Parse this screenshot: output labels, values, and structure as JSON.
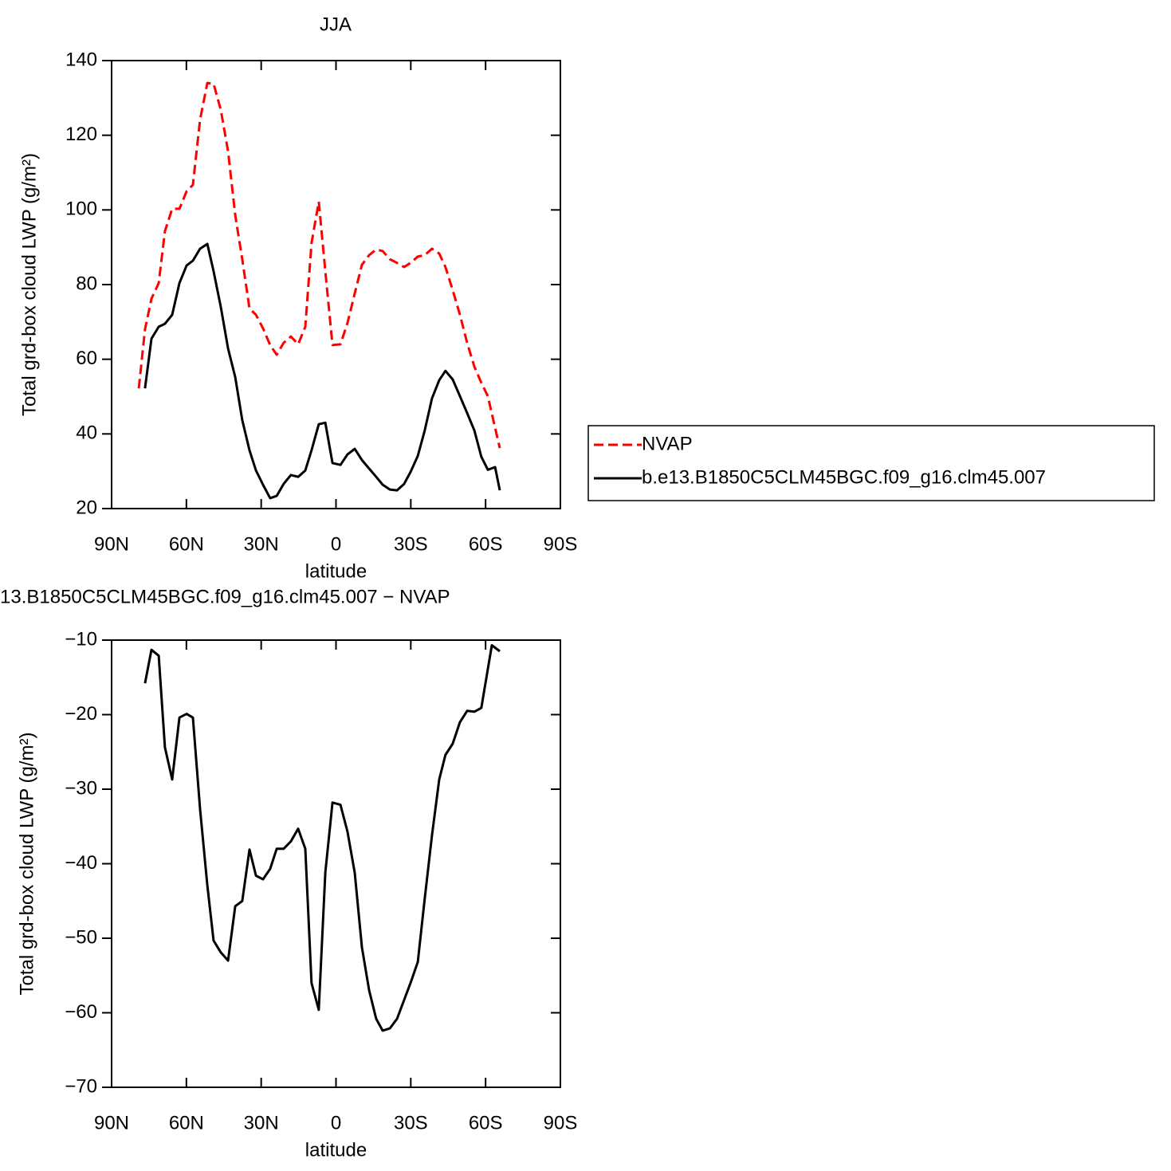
{
  "chart_data": [
    {
      "type": "line",
      "title": "JJA",
      "ylabel": "Total grd-box cloud LWP (g/m²)",
      "xlabel": "latitude",
      "x": [
        79.1,
        76.6,
        74,
        71.1,
        68.6,
        65.7,
        62.8,
        59.9,
        57.4,
        54.5,
        51.6,
        49.1,
        46.2,
        43.3,
        40.4,
        37.6,
        34.7,
        32.1,
        29.3,
        26.4,
        23.8,
        21,
        18.1,
        15.2,
        12.3,
        9.8,
        6.9,
        4.3,
        1.4,
        -1.8,
        -4.6,
        -7.5,
        -10.4,
        -13.3,
        -16.1,
        -18.7,
        -21.6,
        -24.5,
        -27.3,
        -29.9,
        -32.8,
        -35.6,
        -38.5,
        -41.4,
        -43.9,
        -46.8,
        -49.7,
        -52.6,
        -55.5,
        -58.3,
        -60.9,
        -63.8,
        -65.7
      ],
      "xlim": [
        90,
        -90
      ],
      "xticks": [
        {
          "value": 90,
          "label": "90N"
        },
        {
          "value": 60,
          "label": "60N"
        },
        {
          "value": 30,
          "label": "30N"
        },
        0,
        {
          "value": -30,
          "label": "30S"
        },
        {
          "value": -60,
          "label": "60S"
        },
        {
          "value": -90,
          "label": "90S"
        }
      ],
      "ylim": [
        20,
        140
      ],
      "yticks": [
        20,
        40,
        60,
        80,
        100,
        120,
        140
      ],
      "legend": "right",
      "series": [
        {
          "name": "NVAP",
          "color": "#ff0000",
          "dash": true,
          "values": [
            52.2,
            68,
            76.2,
            80.4,
            94.3,
            100.3,
            100.3,
            105,
            106.7,
            124.2,
            134,
            133.8,
            126.8,
            115.7,
            98.6,
            86.8,
            73.6,
            71.9,
            68.3,
            63.8,
            61.2,
            64.4,
            66.1,
            64,
            68.7,
            91.1,
            102.2,
            83.6,
            63.8,
            64,
            69.7,
            77.6,
            85.3,
            87.9,
            89.4,
            89,
            86.8,
            85.8,
            84.7,
            85.8,
            87.5,
            87.9,
            89.6,
            88.3,
            84.7,
            78.5,
            71.9,
            64.4,
            58,
            53.7,
            50.1,
            41.6,
            36.2
          ]
        },
        {
          "name": "b.e13.B1850C5CLM45BGC.f09_g16.clm45.007",
          "color": "#000000",
          "dash": false,
          "values": [
            null,
            52.2,
            65.5,
            68.7,
            69.5,
            71.9,
            80.4,
            85.1,
            86.4,
            89.6,
            90.9,
            83.6,
            74,
            62.9,
            55.2,
            43.7,
            35.6,
            30.2,
            26.4,
            22.8,
            23.4,
            26.6,
            29,
            28.5,
            30.2,
            35.6,
            42.6,
            43,
            32.2,
            31.7,
            34.5,
            36,
            33,
            30.7,
            28.5,
            26.4,
            25.1,
            24.9,
            26.6,
            29.8,
            34.1,
            40.9,
            49.5,
            54.4,
            56.9,
            54.6,
            50.1,
            45.6,
            40.9,
            33.9,
            30.4,
            31.1,
            24.9
          ]
        }
      ]
    },
    {
      "type": "line",
      "title": "13.B1850C5CLM45BGC.f09_g16.clm45.007 − NVAP",
      "ylabel": "Total grd-box cloud LWP (g/m²)",
      "xlabel": "latitude",
      "x": [
        76.6,
        74,
        71.1,
        68.6,
        65.7,
        62.8,
        59.9,
        57.4,
        54.5,
        51.6,
        49.1,
        46.2,
        43.3,
        40.4,
        37.6,
        34.7,
        32.1,
        29.3,
        26.4,
        23.8,
        21,
        18.1,
        15.2,
        12.3,
        9.8,
        6.9,
        4.3,
        1.4,
        -1.8,
        -4.6,
        -7.5,
        -10.4,
        -13.3,
        -16.1,
        -18.7,
        -21.6,
        -24.5,
        -27.3,
        -29.9,
        -32.8,
        -35.6,
        -38.5,
        -41.4,
        -43.9,
        -46.8,
        -49.7,
        -52.6,
        -55.5,
        -58.3,
        -62.5,
        -65.7
      ],
      "xlim": [
        90,
        -90
      ],
      "xticks": [
        {
          "value": 90,
          "label": "90N"
        },
        {
          "value": 60,
          "label": "60N"
        },
        {
          "value": 30,
          "label": "30N"
        },
        0,
        {
          "value": -30,
          "label": "30S"
        },
        {
          "value": -60,
          "label": "60S"
        },
        {
          "value": -90,
          "label": "90S"
        }
      ],
      "ylim": [
        -70,
        -10
      ],
      "yticks": [
        {
          "value": -70,
          "label": "−70"
        },
        {
          "value": -60,
          "label": "−60"
        },
        {
          "value": -50,
          "label": "−50"
        },
        {
          "value": -40,
          "label": "−40"
        },
        {
          "value": -30,
          "label": "−30"
        },
        {
          "value": -20,
          "label": "−20"
        },
        {
          "value": -10,
          "label": "−10"
        }
      ],
      "series": [
        {
          "color": "#000000",
          "dash": false,
          "values": [
            -15.8,
            -11.3,
            -12.1,
            -24.4,
            -28.7,
            -20.4,
            -19.9,
            -20.4,
            -32.7,
            -42.9,
            -50.3,
            -51.9,
            -53,
            -45.7,
            -45,
            -38.1,
            -41.6,
            -42.1,
            -40.7,
            -38,
            -38,
            -37,
            -35.3,
            -38,
            -56,
            -59.6,
            -41.2,
            -31.8,
            -32.1,
            -35.7,
            -41.2,
            -51.2,
            -57,
            -60.8,
            -62.4,
            -62.1,
            -60.8,
            -58.3,
            -56,
            -53.2,
            -44.7,
            -36.2,
            -28.7,
            -25.4,
            -23.9,
            -21,
            -19.5,
            -19.6,
            -19.1,
            -10.7,
            -11.5
          ]
        }
      ]
    }
  ]
}
